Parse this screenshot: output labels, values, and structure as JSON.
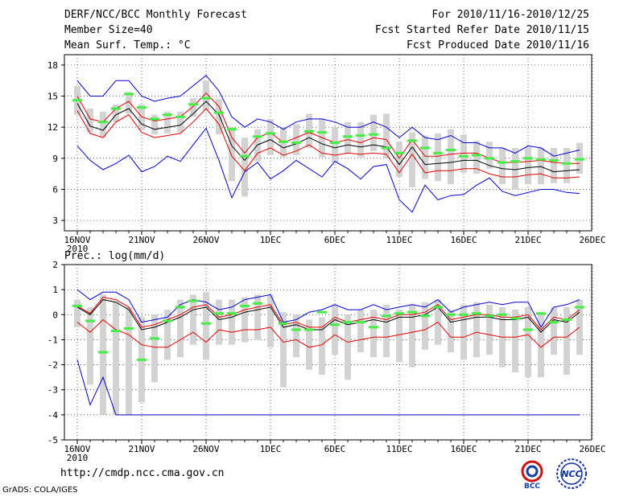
{
  "header": {
    "title": "DERF/NCC/BCC Monthly Forecast",
    "member_size": "Member Size=40",
    "variable": "Mean Surf. Temp.: °C",
    "forecast_period": "For 2010/11/16-2010/12/25",
    "started_refer_date": "Fcst Started Refer Date 2010/11/15",
    "produced_date": "Fcst Produced Date 2010/11/16"
  },
  "footer": {
    "url": "http://cmdp.ncc.cma.gov.cn",
    "credit": "GrADS: COLA/IGES",
    "logo_bcc_text": "BCC",
    "logo_ncc_text": "NCC"
  },
  "colors": {
    "mean": "#000000",
    "spread": "#e00000",
    "extreme": "#0000d0",
    "box": "#d3d3d3",
    "obs_marker": "#44ee44"
  },
  "chart_data": [
    {
      "type": "line",
      "title": "Mean Surf. Temp.: °C",
      "x_start": "2010-11-16",
      "n_days": 40,
      "x_tick_labels": [
        "16NOV",
        "21NOV",
        "26NOV",
        "1DEC",
        "6DEC",
        "11DEC",
        "16DEC",
        "21DEC",
        "26DEC"
      ],
      "x_year_label": "2010",
      "ylim": [
        2,
        19
      ],
      "y_ticks": [
        3,
        6,
        9,
        12,
        15,
        18
      ],
      "grid": true,
      "series": [
        {
          "name": "max",
          "values": [
            16.5,
            15.0,
            15.0,
            16.5,
            16.5,
            15.0,
            14.5,
            14.8,
            15.0,
            16.0,
            17.0,
            15.5,
            13.0,
            12.0,
            12.8,
            12.5,
            11.8,
            12.5,
            12.8,
            12.8,
            12.5,
            12.0,
            12.0,
            12.5,
            12.0,
            11.0,
            12.0,
            11.0,
            10.8,
            11.2,
            10.5,
            10.5,
            10.0,
            10.0,
            9.5,
            10.2,
            10.0,
            9.2,
            9.5,
            9.8
          ]
        },
        {
          "name": "upper_spread",
          "values": [
            15.0,
            12.8,
            12.5,
            13.8,
            14.5,
            13.0,
            12.6,
            12.8,
            13.0,
            14.0,
            15.3,
            14.0,
            11.0,
            9.5,
            11.0,
            11.5,
            10.5,
            11.0,
            11.5,
            11.0,
            10.5,
            10.8,
            10.5,
            11.0,
            10.8,
            9.0,
            10.8,
            9.2,
            9.2,
            9.4,
            9.5,
            9.5,
            9.0,
            8.6,
            8.6,
            8.7,
            8.8,
            8.6,
            8.5,
            8.5
          ]
        },
        {
          "name": "mean",
          "values": [
            14.3,
            12.1,
            11.7,
            13.2,
            13.8,
            12.3,
            11.8,
            12.0,
            12.2,
            13.3,
            14.5,
            13.2,
            10.2,
            8.8,
            10.3,
            10.8,
            10.0,
            10.4,
            11.0,
            10.4,
            10.0,
            10.3,
            10.1,
            10.3,
            10.1,
            8.4,
            10.1,
            8.4,
            8.5,
            8.6,
            8.8,
            8.8,
            8.3,
            8.0,
            7.9,
            8.1,
            8.2,
            7.7,
            7.8,
            7.9
          ]
        },
        {
          "name": "lower_spread",
          "values": [
            13.6,
            11.4,
            11.0,
            12.5,
            13.2,
            11.5,
            11.0,
            11.2,
            11.4,
            12.5,
            13.8,
            12.3,
            9.2,
            7.8,
            9.5,
            10.0,
            9.3,
            9.7,
            10.3,
            9.5,
            9.3,
            9.5,
            9.4,
            9.5,
            9.4,
            7.6,
            9.4,
            7.6,
            7.8,
            7.8,
            8.0,
            8.0,
            7.5,
            7.2,
            7.2,
            7.4,
            7.5,
            7.1,
            7.1,
            7.2
          ]
        },
        {
          "name": "min",
          "values": [
            10.2,
            8.8,
            7.9,
            8.5,
            9.3,
            7.7,
            8.2,
            9.2,
            8.7,
            10.3,
            11.9,
            8.8,
            5.2,
            7.7,
            8.6,
            7.0,
            7.8,
            8.8,
            8.0,
            7.2,
            8.7,
            8.0,
            7.0,
            8.2,
            8.4,
            5.0,
            3.8,
            6.4,
            5.0,
            5.4,
            5.5,
            6.4,
            7.1,
            5.8,
            5.4,
            5.7,
            6.0,
            6.0,
            5.7,
            5.6
          ]
        }
      ],
      "box_ranges": [
        [
          13.2,
          16.0
        ],
        [
          11.5,
          13.8
        ],
        [
          11.0,
          13.5
        ],
        [
          12.5,
          14.2
        ],
        [
          13.3,
          15.4
        ],
        [
          11.7,
          14.2
        ],
        [
          11.3,
          13.2
        ],
        [
          11.4,
          13.5
        ],
        [
          11.5,
          13.5
        ],
        [
          13.0,
          14.8
        ],
        [
          13.6,
          16.5
        ],
        [
          11.3,
          14.7
        ],
        [
          6.8,
          12.0
        ],
        [
          5.3,
          11.0
        ],
        [
          8.7,
          11.8
        ],
        [
          9.3,
          12.8
        ],
        [
          9.1,
          12.0
        ],
        [
          9.3,
          12.3
        ],
        [
          10.0,
          13.3
        ],
        [
          9.1,
          12.8
        ],
        [
          8.6,
          12.0
        ],
        [
          9.5,
          12.5
        ],
        [
          9.1,
          12.5
        ],
        [
          9.7,
          13.2
        ],
        [
          9.0,
          13.3
        ],
        [
          7.2,
          10.6
        ],
        [
          6.2,
          11.5
        ],
        [
          7.0,
          11.2
        ],
        [
          6.8,
          11.4
        ],
        [
          6.5,
          11.8
        ],
        [
          7.6,
          11.3
        ],
        [
          7.5,
          10.7
        ],
        [
          8.0,
          10.6
        ],
        [
          6.5,
          10.0
        ],
        [
          6.0,
          10.0
        ],
        [
          6.5,
          10.1
        ],
        [
          6.5,
          10.0
        ],
        [
          6.6,
          10.0
        ],
        [
          6.6,
          10.0
        ],
        [
          7.5,
          10.5
        ]
      ],
      "observed_markers": [
        14.6,
        null,
        12.5,
        13.8,
        15.2,
        13.9,
        12.8,
        13.2,
        13.0,
        14.2,
        14.8,
        13.4,
        11.8,
        9.2,
        11.1,
        11.4,
        10.6,
        10.5,
        11.6,
        11.5,
        10.5,
        11.1,
        11.2,
        11.3,
        10.0,
        9.5,
        10.7,
        10.0,
        9.5,
        9.8,
        9.2,
        9.3,
        9.0,
        8.6,
        8.7,
        9.0,
        8.9,
        8.8,
        8.5,
        8.9
      ]
    },
    {
      "type": "line",
      "title": "Prec.: log(mm/d)",
      "x_start": "2010-11-16",
      "n_days": 40,
      "x_tick_labels": [
        "16NOV",
        "21NOV",
        "26NOV",
        "1DEC",
        "6DEC",
        "11DEC",
        "16DEC",
        "21DEC",
        "26DEC"
      ],
      "x_year_label": "2010",
      "ylim": [
        -5,
        2
      ],
      "y_ticks": [
        -5,
        -4,
        -3,
        -2,
        -1,
        0,
        1,
        2
      ],
      "grid": true,
      "series": [
        {
          "name": "max",
          "values": [
            1.0,
            0.6,
            0.9,
            0.9,
            0.6,
            -0.3,
            -0.2,
            -0.1,
            0.4,
            0.6,
            0.5,
            0.2,
            0.3,
            0.6,
            0.7,
            0.8,
            -0.3,
            -0.2,
            0.1,
            0.2,
            0.4,
            0.2,
            0.2,
            0.4,
            0.2,
            0.3,
            0.4,
            0.3,
            0.6,
            0.1,
            0.3,
            0.4,
            0.5,
            0.4,
            0.5,
            0.5,
            -0.5,
            0.3,
            0.4,
            0.6
          ]
        },
        {
          "name": "upper_spread",
          "values": [
            0.35,
            0.05,
            0.7,
            0.6,
            0.3,
            -0.5,
            -0.4,
            -0.2,
            0.0,
            0.3,
            0.4,
            -0.1,
            0.0,
            0.2,
            0.3,
            0.4,
            -0.4,
            -0.3,
            -0.5,
            -0.5,
            -0.1,
            -0.3,
            -0.2,
            -0.1,
            -0.2,
            0.0,
            0.0,
            0.1,
            0.4,
            -0.2,
            -0.1,
            0.0,
            0.0,
            -0.1,
            -0.1,
            0.0,
            -0.6,
            -0.1,
            -0.2,
            0.2
          ]
        },
        {
          "name": "mean",
          "values": [
            0.3,
            0.0,
            0.6,
            0.5,
            0.2,
            -0.6,
            -0.5,
            -0.3,
            -0.1,
            0.2,
            0.3,
            -0.2,
            -0.1,
            0.1,
            0.2,
            0.3,
            -0.5,
            -0.4,
            -0.6,
            -0.6,
            -0.2,
            -0.4,
            -0.3,
            -0.2,
            -0.3,
            -0.1,
            -0.1,
            0.0,
            0.3,
            -0.3,
            -0.2,
            -0.1,
            -0.1,
            -0.2,
            -0.2,
            -0.1,
            -0.7,
            -0.2,
            -0.3,
            0.1
          ]
        },
        {
          "name": "lower_spread",
          "values": [
            -0.3,
            -0.7,
            -0.2,
            -0.6,
            -0.8,
            -1.2,
            -1.3,
            -1.3,
            -1.0,
            -0.7,
            -1.1,
            -0.6,
            -0.7,
            -0.6,
            -0.6,
            -0.5,
            -1.1,
            -1.0,
            -1.3,
            -1.2,
            -0.8,
            -1.1,
            -1.0,
            -0.9,
            -0.9,
            -0.8,
            -0.7,
            -0.6,
            -0.3,
            -0.9,
            -0.9,
            -0.7,
            -0.8,
            -0.9,
            -0.9,
            -0.8,
            -1.3,
            -0.9,
            -0.9,
            -0.5
          ]
        },
        {
          "name": "min",
          "values": [
            -1.8,
            -3.6,
            -2.5,
            -4.0,
            -4.0,
            -4.0,
            -4.0,
            -4.0,
            -4.0,
            -4.0,
            -4.0,
            -4.0,
            -4.0,
            -4.0,
            -4.0,
            -4.0,
            -4.0,
            -4.0,
            -4.0,
            -4.0,
            -4.0,
            -4.0,
            -4.0,
            -4.0,
            -4.0,
            -4.0,
            -4.0,
            -4.0,
            -4.0,
            -4.0,
            -4.0,
            -4.0,
            -4.0,
            -4.0,
            -4.0,
            -4.0,
            -4.0,
            -4.0,
            -4.0,
            -4.0
          ]
        }
      ],
      "box_ranges": [
        [
          -0.5,
          0.6
        ],
        [
          -2.8,
          0.3
        ],
        [
          -4.0,
          0.8
        ],
        [
          -4.0,
          0.5
        ],
        [
          -4.0,
          0.3
        ],
        [
          -3.5,
          -0.1
        ],
        [
          -2.7,
          0.0
        ],
        [
          -1.8,
          0.2
        ],
        [
          -1.7,
          0.6
        ],
        [
          -1.2,
          0.8
        ],
        [
          -1.8,
          0.9
        ],
        [
          -1.2,
          0.6
        ],
        [
          -1.2,
          0.6
        ],
        [
          -1.1,
          0.7
        ],
        [
          -1.0,
          0.8
        ],
        [
          -1.3,
          0.8
        ],
        [
          -2.9,
          0.1
        ],
        [
          -1.7,
          0.0
        ],
        [
          -2.2,
          -0.2
        ],
        [
          -2.4,
          -0.1
        ],
        [
          -1.6,
          0.4
        ],
        [
          -2.6,
          0.0
        ],
        [
          -1.5,
          0.2
        ],
        [
          -1.7,
          0.2
        ],
        [
          -1.7,
          0.4
        ],
        [
          -1.9,
          0.2
        ],
        [
          -2.1,
          0.4
        ],
        [
          -1.4,
          0.5
        ],
        [
          -1.2,
          0.6
        ],
        [
          -1.5,
          0.2
        ],
        [
          -1.8,
          0.4
        ],
        [
          -1.7,
          0.5
        ],
        [
          -1.6,
          0.4
        ],
        [
          -2.1,
          0.3
        ],
        [
          -2.3,
          0.2
        ],
        [
          -2.5,
          0.3
        ],
        [
          -2.5,
          0.0
        ],
        [
          -1.6,
          0.3
        ],
        [
          -2.4,
          0.3
        ],
        [
          -1.6,
          0.6
        ]
      ],
      "observed_markers": [
        0.35,
        -0.25,
        -1.5,
        -0.65,
        -0.55,
        -1.8,
        -0.95,
        -0.25,
        0.3,
        0.55,
        -0.35,
        0.05,
        0.05,
        0.35,
        0.45,
        null,
        -0.35,
        -0.6,
        -0.6,
        0.1,
        -0.4,
        -0.3,
        -0.3,
        -0.5,
        -0.05,
        0.05,
        0.1,
        -0.05,
        0.3,
        0.0,
        0.0,
        0.05,
        -0.05,
        0.0,
        -0.15,
        -0.6,
        0.05,
        -0.3,
        -0.2,
        0.3
      ]
    }
  ]
}
